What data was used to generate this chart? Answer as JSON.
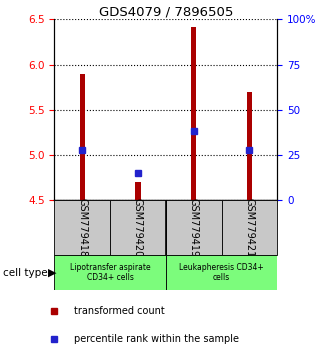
{
  "title": "GDS4079 / 7896505",
  "samples": [
    "GSM779418",
    "GSM779420",
    "GSM779419",
    "GSM779421"
  ],
  "bar_bottoms": [
    4.5,
    4.5,
    4.5,
    4.5
  ],
  "bar_tops": [
    5.9,
    4.7,
    6.42,
    5.7
  ],
  "percentile_values": [
    5.05,
    4.8,
    5.27,
    5.05
  ],
  "ylim_left": [
    4.5,
    6.5
  ],
  "ylim_right": [
    0,
    100
  ],
  "yticks_left": [
    4.5,
    5.0,
    5.5,
    6.0,
    6.5
  ],
  "yticks_right": [
    0,
    25,
    50,
    75,
    100
  ],
  "ytick_labels_right": [
    "0",
    "25",
    "50",
    "75",
    "100%"
  ],
  "bar_color": "#AA0000",
  "blue_color": "#2222CC",
  "group1_label": "Lipotransfer aspirate\nCD34+ cells",
  "group2_label": "Leukapheresis CD34+\ncells",
  "sample_bg": "#C8C8C8",
  "group_cell_bg": "#7CFC7C",
  "cell_type_label": "cell type",
  "legend_red_label": "transformed count",
  "legend_blue_label": "percentile rank within the sample",
  "bar_width": 0.1
}
